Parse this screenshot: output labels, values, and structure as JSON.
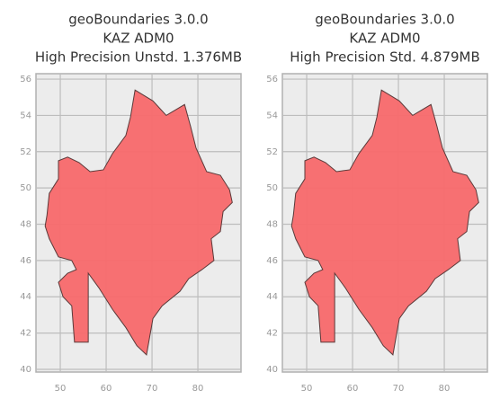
{
  "chart_data": [
    {
      "type": "map",
      "title": [
        "geoBoundaries 3.0.0",
        "KAZ ADM0",
        "High Precision Unstd. 1.376MB"
      ],
      "color": "#f8696b",
      "grid": true,
      "xlim": [
        44.7,
        89.4
      ],
      "ylim": [
        39.85,
        56.3
      ],
      "xticks": [
        50,
        60,
        70,
        80
      ],
      "yticks": [
        40,
        42,
        44,
        46,
        48,
        50,
        52,
        54,
        56
      ],
      "x": [
        47.1,
        47.6,
        49.6,
        49.6,
        51.6,
        54.1,
        56.5,
        59.4,
        61.4,
        64.3,
        65.3,
        66.3,
        70.2,
        73.1,
        77.1,
        78.4,
        79.6,
        81.9,
        84.9,
        86.9,
        87.5,
        85.5,
        84.9,
        82.9,
        83.5,
        80.9,
        78.0,
        76.1,
        72.2,
        70.2,
        68.8,
        66.7,
        64.3,
        61.4,
        58.4,
        56.1,
        56.1,
        53.1,
        52.5,
        50.6,
        49.6,
        51.6,
        53.5,
        52.5,
        49.6,
        47.6,
        46.7
      ],
      "y": [
        48.5,
        49.7,
        50.5,
        51.5,
        51.7,
        51.4,
        50.9,
        51.0,
        51.9,
        52.9,
        53.9,
        55.4,
        54.8,
        54.0,
        54.6,
        53.4,
        52.2,
        50.9,
        50.7,
        49.9,
        49.2,
        48.7,
        47.6,
        47.2,
        46.0,
        45.5,
        45.0,
        44.3,
        43.5,
        42.8,
        40.8,
        41.3,
        42.3,
        43.3,
        44.5,
        45.3,
        41.5,
        41.5,
        43.5,
        44.0,
        44.8,
        45.3,
        45.5,
        46.0,
        46.2,
        47.2,
        47.9
      ]
    },
    {
      "type": "map",
      "title": [
        "geoBoundaries 3.0.0",
        "KAZ ADM0",
        "High Precision Std. 4.879MB"
      ],
      "color": "#f8696b",
      "grid": true,
      "xlim": [
        44.7,
        89.4
      ],
      "ylim": [
        39.85,
        56.3
      ],
      "xticks": [
        50,
        60,
        70,
        80
      ],
      "yticks": [
        40,
        42,
        44,
        46,
        48,
        50,
        52,
        54,
        56
      ],
      "x": [
        47.1,
        47.6,
        49.6,
        49.6,
        51.6,
        54.1,
        56.5,
        59.4,
        61.4,
        64.3,
        65.3,
        66.3,
        70.2,
        73.1,
        77.1,
        78.4,
        79.6,
        81.9,
        84.9,
        86.9,
        87.5,
        85.5,
        84.9,
        82.9,
        83.5,
        80.9,
        78.0,
        76.1,
        72.2,
        70.2,
        68.8,
        66.7,
        64.3,
        61.4,
        58.4,
        56.1,
        56.1,
        53.1,
        52.5,
        50.6,
        49.6,
        51.6,
        53.5,
        52.5,
        49.6,
        47.6,
        46.7
      ],
      "y": [
        48.5,
        49.7,
        50.5,
        51.5,
        51.7,
        51.4,
        50.9,
        51.0,
        51.9,
        52.9,
        53.9,
        55.4,
        54.8,
        54.0,
        54.6,
        53.4,
        52.2,
        50.9,
        50.7,
        49.9,
        49.2,
        48.7,
        47.6,
        47.2,
        46.0,
        45.5,
        45.0,
        44.3,
        43.5,
        42.8,
        40.8,
        41.3,
        42.3,
        43.3,
        44.5,
        45.3,
        41.5,
        41.5,
        43.5,
        44.0,
        44.8,
        45.3,
        45.5,
        46.0,
        46.2,
        47.2,
        47.9
      ]
    }
  ]
}
